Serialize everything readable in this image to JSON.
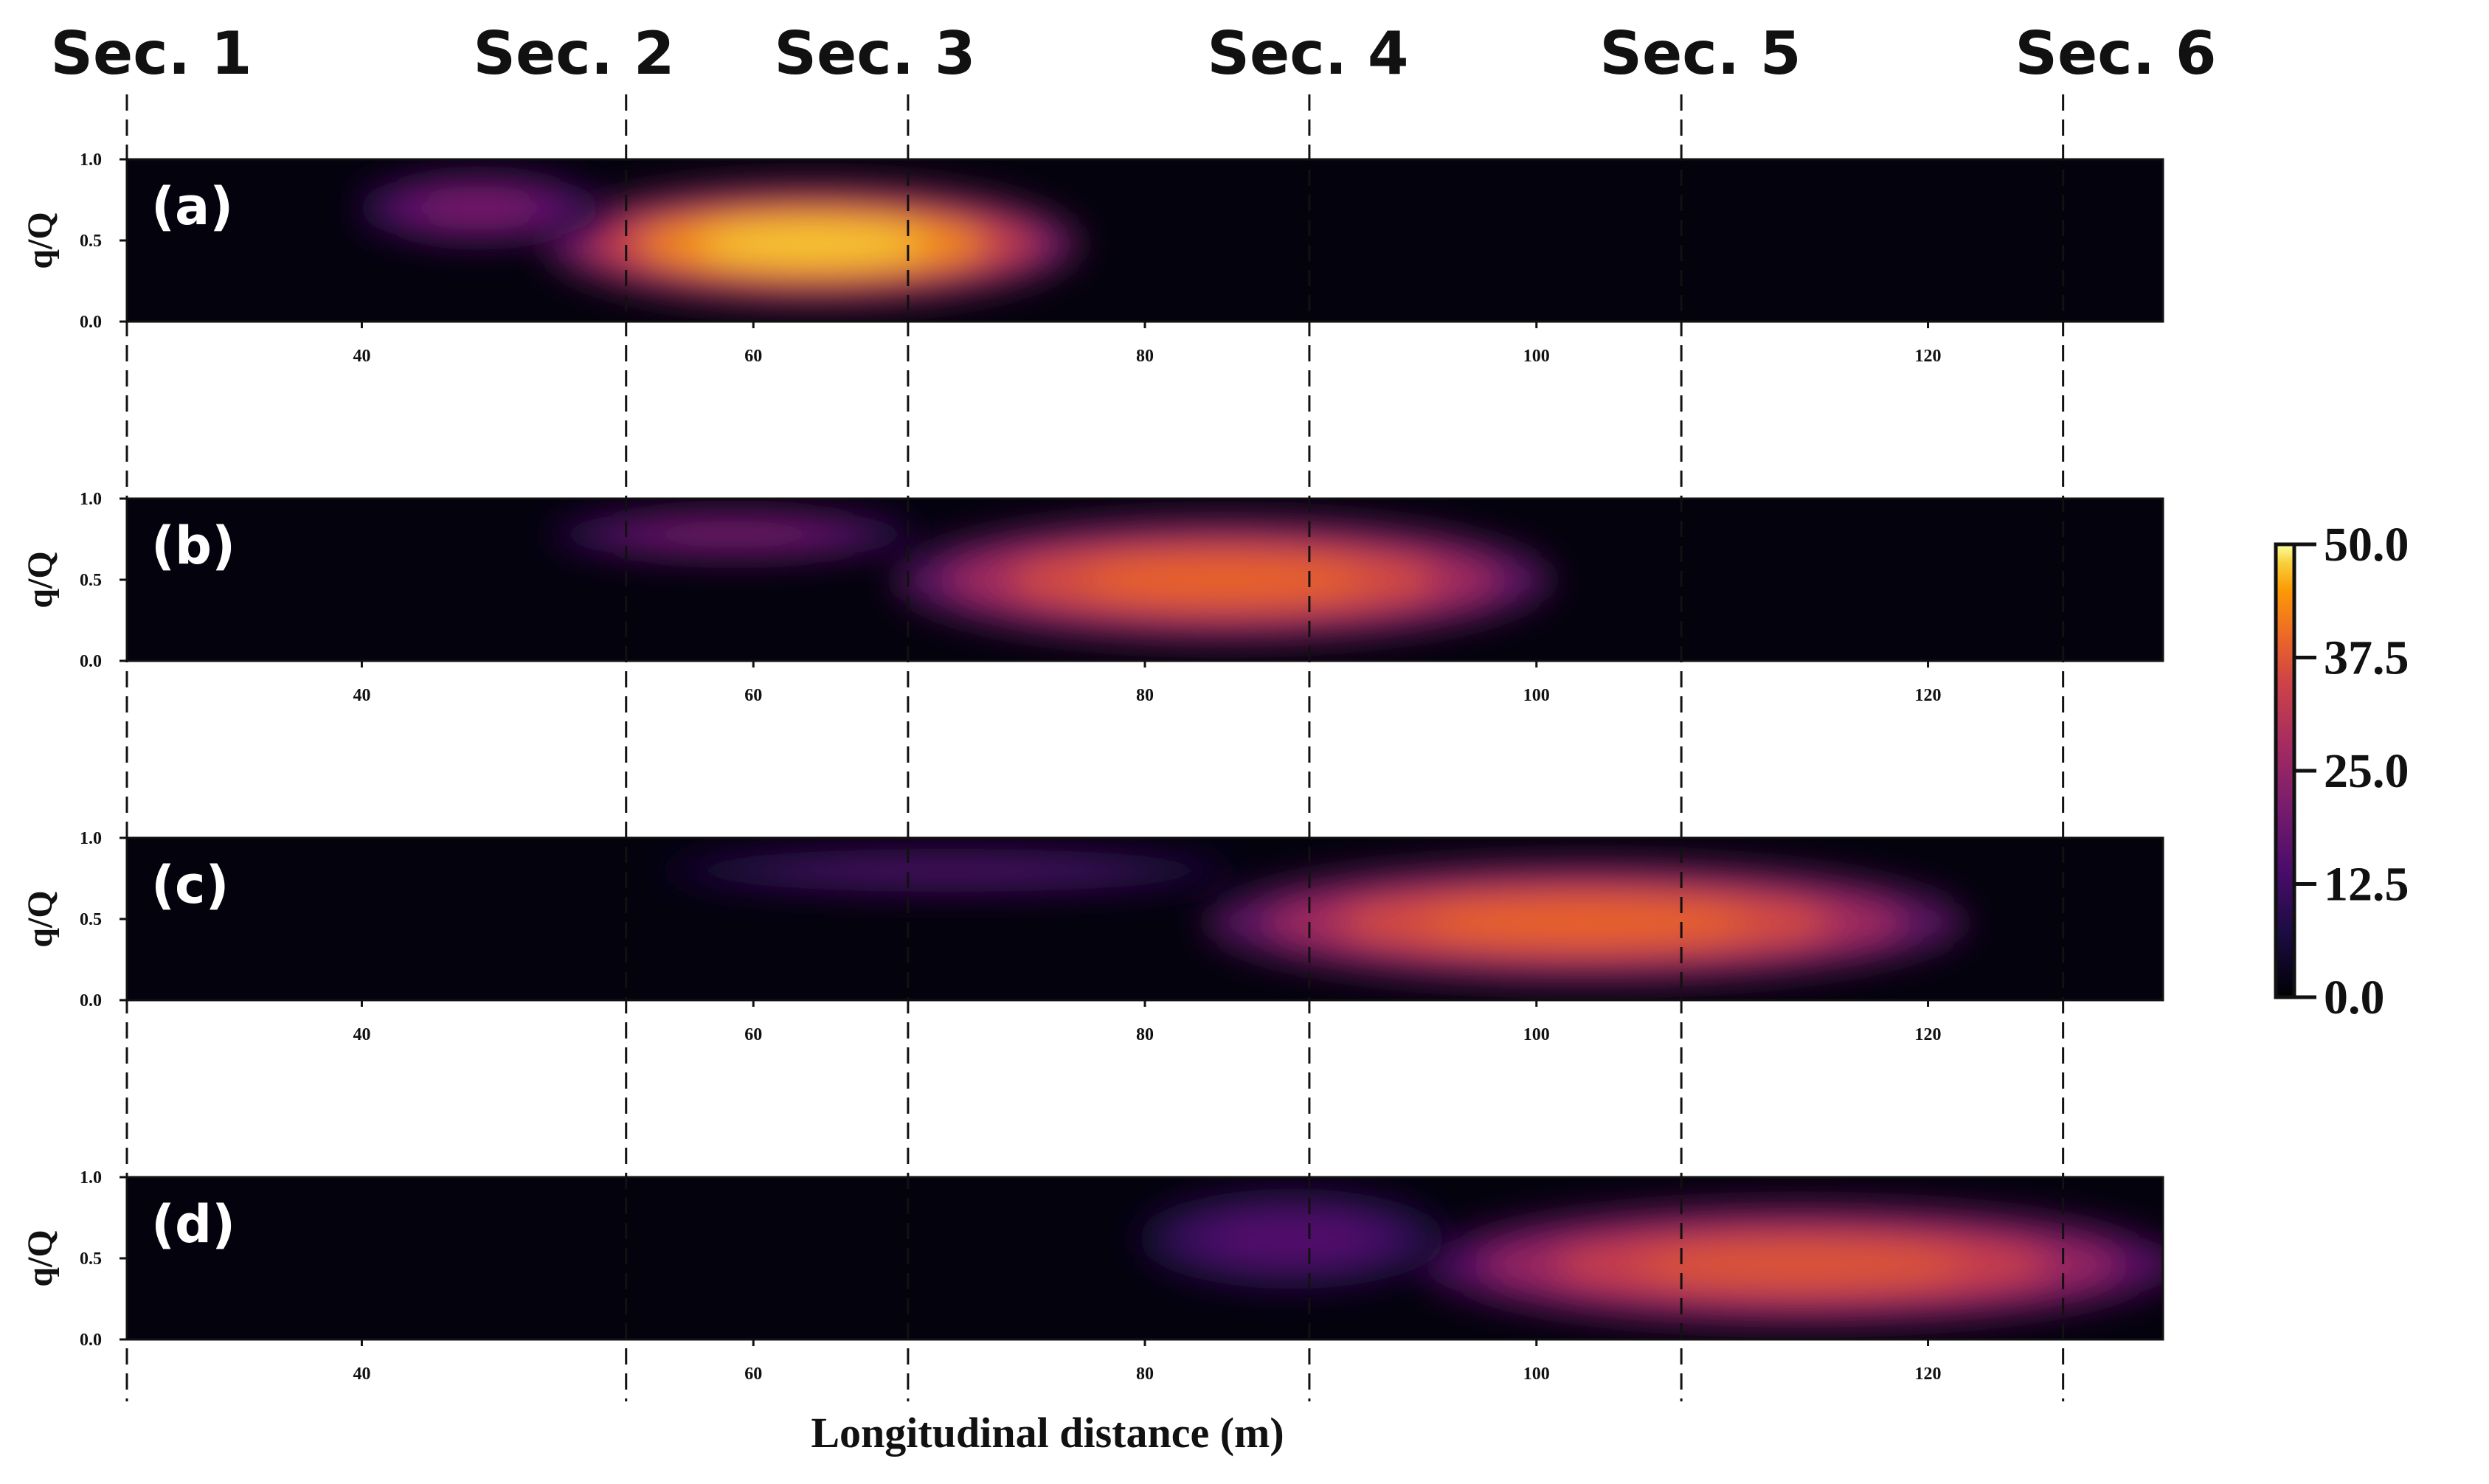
{
  "chart_data": {
    "type": "heatmap",
    "xlabel": "Longitudinal distance (m)",
    "ylabel": "q/Q",
    "xlim": [
      28,
      132
    ],
    "ylim": [
      0,
      1
    ],
    "x_ticks": [
      40,
      60,
      80,
      100,
      120
    ],
    "y_ticks": [
      "0.0",
      "0.5",
      "1.0"
    ],
    "sections": [
      {
        "label": "Sec. 1",
        "x": 28.0
      },
      {
        "label": "Sec. 2",
        "x": 53.5
      },
      {
        "label": "Sec. 3",
        "x": 67.9
      },
      {
        "label": "Sec. 4",
        "x": 88.4
      },
      {
        "label": "Sec. 5",
        "x": 107.4
      },
      {
        "label": "Sec. 6",
        "x": 126.9
      }
    ],
    "colorbar": {
      "min": 0.0,
      "max": 50.0,
      "ticks": [
        "50.0",
        "37.5",
        "25.0",
        "12.5",
        "0.0"
      ],
      "colormap": "inferno-like"
    },
    "panels": [
      {
        "label": "(a)",
        "blobs": [
          {
            "x_start": 50,
            "x_end": 76,
            "q_center": 0.48,
            "q_half_width": 0.34,
            "peak": 48
          },
          {
            "x_start": 40,
            "x_end": 52,
            "q_center": 0.7,
            "q_half_width": 0.2,
            "peak": 22
          }
        ]
      },
      {
        "label": "(b)",
        "blobs": [
          {
            "x_start": 68,
            "x_end": 100,
            "q_center": 0.5,
            "q_half_width": 0.35,
            "peak": 40
          },
          {
            "x_start": 50,
            "x_end": 68,
            "q_center": 0.78,
            "q_half_width": 0.14,
            "peak": 22
          }
        ]
      },
      {
        "label": "(c)",
        "blobs": [
          {
            "x_start": 84,
            "x_end": 121,
            "q_center": 0.48,
            "q_half_width": 0.34,
            "peak": 40
          },
          {
            "x_start": 56,
            "x_end": 84,
            "q_center": 0.8,
            "q_half_width": 0.12,
            "peak": 16
          }
        ]
      },
      {
        "label": "(d)",
        "blobs": [
          {
            "x_start": 95,
            "x_end": 132,
            "q_center": 0.46,
            "q_half_width": 0.34,
            "peak": 38
          },
          {
            "x_start": 80,
            "x_end": 95,
            "q_center": 0.62,
            "q_half_width": 0.28,
            "peak": 16
          }
        ]
      }
    ]
  },
  "colors": {
    "line": "#111111",
    "background": "#ffffff"
  }
}
